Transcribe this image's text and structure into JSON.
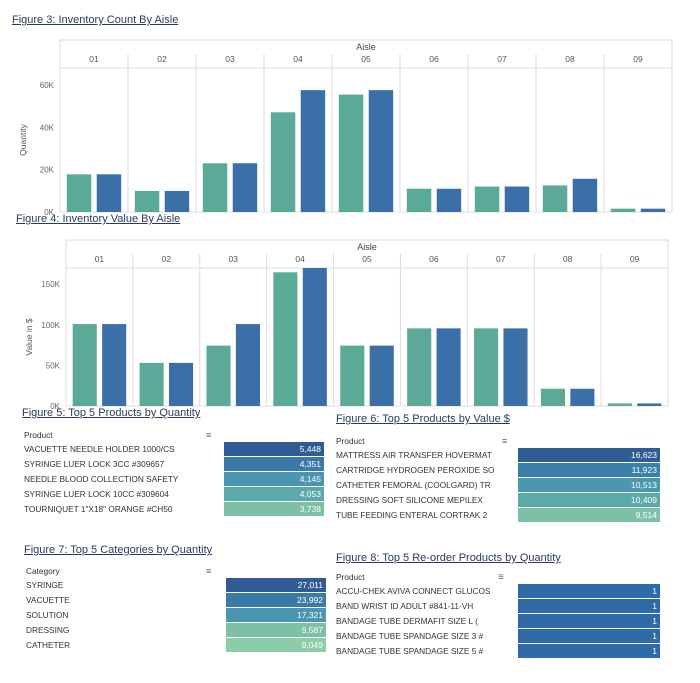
{
  "fig3": {
    "title": "Figure 3: Inventory Count By Aisle",
    "type": "bar",
    "header": "Aisle",
    "aisles": [
      "01",
      "02",
      "03",
      "04",
      "05",
      "06",
      "07",
      "08",
      "09"
    ],
    "ylabel": "Quantity",
    "yticks": [
      "0K",
      "20K",
      "40K",
      "60K"
    ],
    "ylim": [
      0,
      65000
    ],
    "values": [
      17000,
      17000,
      9500,
      9500,
      22000,
      22000,
      45000,
      55000,
      53000,
      55000,
      10500,
      10500,
      11500,
      11500,
      12000,
      15000,
      1500,
      1500
    ],
    "colors": [
      "#5aaa97",
      "#3a6fa8",
      "#5aaa97",
      "#3a6fa8",
      "#5aaa97",
      "#3a6fa8",
      "#5aaa97",
      "#3a6fa8",
      "#5aaa97",
      "#3a6fa8",
      "#5aaa97",
      "#3a6fa8",
      "#5aaa97",
      "#3a6fa8",
      "#5aaa97",
      "#3a6fa8",
      "#5aaa97",
      "#3a6fa8"
    ]
  },
  "fig4": {
    "title": "Figure 4: Inventory Value By Aisle",
    "type": "bar",
    "header": "Aisle",
    "aisles": [
      "01",
      "02",
      "03",
      "04",
      "05",
      "06",
      "07",
      "08",
      "09"
    ],
    "ylabel": "Value in $",
    "yticks": [
      "0K",
      "50K",
      "100K",
      "150K"
    ],
    "ylim": [
      0,
      160000
    ],
    "values": [
      95000,
      95000,
      50000,
      50000,
      70000,
      95000,
      155000,
      160000,
      70000,
      70000,
      90000,
      90000,
      90000,
      90000,
      20000,
      20000,
      3000,
      3000
    ],
    "colors": [
      "#5aaa97",
      "#3a6fa8",
      "#5aaa97",
      "#3a6fa8",
      "#5aaa97",
      "#3a6fa8",
      "#5aaa97",
      "#3a6fa8",
      "#5aaa97",
      "#3a6fa8",
      "#5aaa97",
      "#3a6fa8",
      "#5aaa97",
      "#3a6fa8",
      "#5aaa97",
      "#3a6fa8",
      "#5aaa97",
      "#3a6fa8"
    ]
  },
  "fig5": {
    "title": "Figure 5: Top 5 Products by Quantity",
    "header": "Product",
    "rows": [
      {
        "label": "VACUETTE NEEDLE HOLDER 1000/CS",
        "value": "5,448",
        "color": "#2f5c94"
      },
      {
        "label": "SYRINGE LUER LOCK 3CC #309657",
        "value": "4,351",
        "color": "#3a7aa8"
      },
      {
        "label": "NEEDLE BLOOD COLLECTION SAFETY",
        "value": "4,145",
        "color": "#4a95b0"
      },
      {
        "label": "SYRINGE LUER LOCK 10CC #309604",
        "value": "4,053",
        "color": "#5aa9ad"
      },
      {
        "label": "TOURNIQUET 1\"X18\" ORANGE #CH50",
        "value": "3,738",
        "color": "#7cc0a6"
      }
    ]
  },
  "fig6": {
    "title": "Figure 6: Top 5 Products by Value $",
    "header": "Product",
    "rows": [
      {
        "label": "MATTRESS AIR TRANSFER HOVERMAT",
        "value": "16,623",
        "color": "#2f5c94"
      },
      {
        "label": "CARTRIDGE HYDROGEN PEROXIDE SO",
        "value": "11,923",
        "color": "#3a80ab"
      },
      {
        "label": "CATHETER FEMORAL (COOLGARD) TR",
        "value": "10,513",
        "color": "#4a98b0"
      },
      {
        "label": "DRESSING SOFT SILICONE MEPILEX",
        "value": "10,409",
        "color": "#5aaaa8"
      },
      {
        "label": "TUBE FEEDING ENTERAL CORTRAK 2",
        "value": "9,514",
        "color": "#7cc0a6"
      }
    ]
  },
  "fig7": {
    "title": "Figure 7: Top 5 Categories by Quantity",
    "header": "Category",
    "rows": [
      {
        "label": "SYRINGE",
        "value": "27,011",
        "color": "#2f5c94"
      },
      {
        "label": "VACUETTE",
        "value": "23,992",
        "color": "#3a7aa8"
      },
      {
        "label": "SOLUTION",
        "value": "17,321",
        "color": "#4a95b0"
      },
      {
        "label": "DRESSING",
        "value": "9,587",
        "color": "#7cc0a6"
      },
      {
        "label": "CATHETER",
        "value": "9,049",
        "color": "#8ccca6"
      }
    ]
  },
  "fig8": {
    "title": "Figure 8: Top 5 Re-order Products by Quantity",
    "header": "Product",
    "rows": [
      {
        "label": "ACCU-CHEK AVIVA CONNECT GLUCOS",
        "value": "1",
        "color": "#2f6aa8"
      },
      {
        "label": "BAND WRIST ID ADULT #841-11-VH",
        "value": "1",
        "color": "#2f6aa8"
      },
      {
        "label": "BANDAGE TUBE DERMAFIT SIZE L (",
        "value": "1",
        "color": "#2f6aa8"
      },
      {
        "label": "BANDAGE TUBE SPANDAGE SIZE 3 #",
        "value": "1",
        "color": "#2f6aa8"
      },
      {
        "label": "BANDAGE TUBE SPANDAGE SIZE 5 #",
        "value": "1",
        "color": "#2f6aa8"
      }
    ]
  }
}
